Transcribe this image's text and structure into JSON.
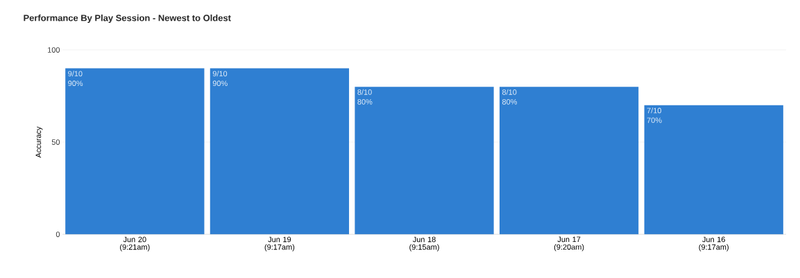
{
  "chart_data": {
    "type": "bar",
    "title": "Performance By Play Session - Newest to Oldest",
    "ylabel": "Accuracy",
    "categories": [
      "Jun 20 (9:21am)",
      "Jun 19 (9:17am)",
      "Jun 18 (9:15am)",
      "Jun 17 (9:20am)",
      "Jun 16 (9:17am)"
    ],
    "values": [
      90,
      90,
      80,
      80,
      70
    ],
    "value_labels": [
      "9/10 90%",
      "9/10 90%",
      "8/10 80%",
      "8/10 80%",
      "7/10 70%"
    ],
    "color": "#2f7fd2",
    "ylim": [
      0,
      100
    ],
    "yticks": [
      0,
      50,
      100
    ],
    "grid": "y"
  }
}
